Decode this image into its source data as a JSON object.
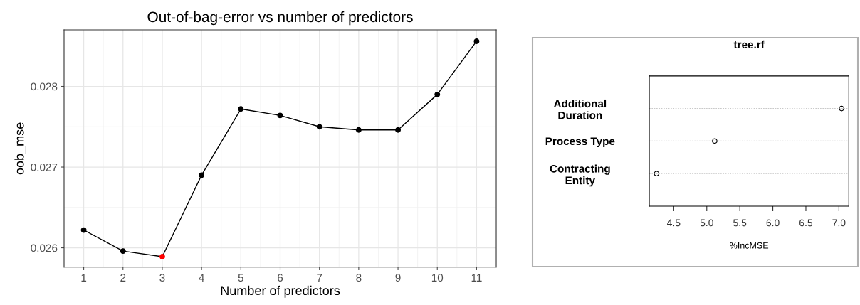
{
  "chart_data": [
    {
      "type": "line",
      "title": "Out-of-bag-error vs number of predictors",
      "xlabel": "Number of predictors",
      "ylabel": "oob_mse",
      "x": [
        1,
        2,
        3,
        4,
        5,
        6,
        7,
        8,
        9,
        10,
        11
      ],
      "series": [
        {
          "color": "#000000",
          "colors": [
            "#000000",
            "#000000",
            "#ff0000",
            "#000000",
            "#000000",
            "#000000",
            "#000000",
            "#000000",
            "#000000",
            "#000000",
            "#000000"
          ],
          "values": [
            0.02622,
            0.02596,
            0.02589,
            0.0269,
            0.02772,
            0.02764,
            0.0275,
            0.02746,
            0.02746,
            0.0279,
            0.02856
          ]
        }
      ],
      "xlim": [
        0.5,
        11.5
      ],
      "xticks": [
        1,
        2,
        3,
        4,
        5,
        6,
        7,
        8,
        9,
        10,
        11
      ],
      "ylim": [
        0.02576,
        0.0287
      ],
      "yticks": [
        0.026,
        0.027,
        0.028
      ],
      "grid": true,
      "marker": "circle",
      "line_style": "solid"
    },
    {
      "type": "scatter",
      "orientation": "horizontal",
      "title": "tree.rf",
      "xlabel": "%IncMSE",
      "categories": [
        "Additional\nDuration",
        "Process Type",
        "Contracting\nEntity"
      ],
      "series": [
        {
          "color": "#000000",
          "values": [
            7.04,
            5.12,
            4.24
          ]
        }
      ],
      "xlim": [
        4.13,
        7.15
      ],
      "xticks": [
        {
          "value": 4.5,
          "label": "4.5"
        },
        {
          "value": 5.0,
          "label": "5.0"
        },
        {
          "value": 5.5,
          "label": "5.5"
        },
        {
          "value": 6.0,
          "label": "6.0"
        },
        {
          "value": 6.5,
          "label": "6.5"
        },
        {
          "value": 7.0,
          "label": "7.0"
        }
      ],
      "grid": "y",
      "marker": "circle"
    }
  ]
}
